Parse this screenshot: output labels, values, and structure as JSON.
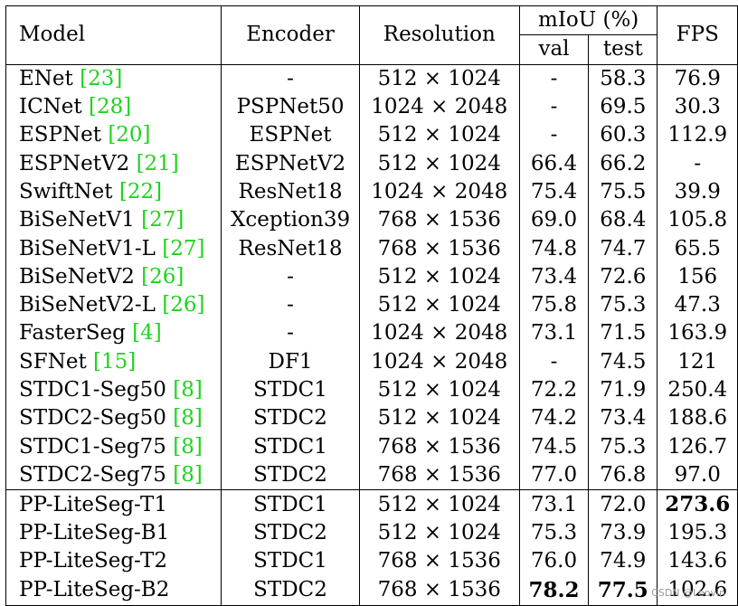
{
  "header": {
    "model": "Model",
    "encoder": "Encoder",
    "resolution": "Resolution",
    "miou": "mIoU (%)",
    "val": "val",
    "test": "test",
    "fps": "FPS"
  },
  "rows_a": [
    {
      "model": "ENet ",
      "ref": "[23]",
      "encoder": "-",
      "res": "512 × 1024",
      "val": "-",
      "test": "58.3",
      "fps": "76.9"
    },
    {
      "model": "ICNet ",
      "ref": "[28]",
      "encoder": "PSPNet50",
      "res": "1024 × 2048",
      "val": "-",
      "test": "69.5",
      "fps": "30.3"
    },
    {
      "model": "ESPNet ",
      "ref": "[20]",
      "encoder": "ESPNet",
      "res": "512 × 1024",
      "val": "-",
      "test": "60.3",
      "fps": "112.9"
    },
    {
      "model": "ESPNetV2 ",
      "ref": "[21]",
      "encoder": "ESPNetV2",
      "res": "512 × 1024",
      "val": "66.4",
      "test": "66.2",
      "fps": "-"
    },
    {
      "model": "SwiftNet ",
      "ref": "[22]",
      "encoder": "ResNet18",
      "res": "1024 × 2048",
      "val": "75.4",
      "test": "75.5",
      "fps": "39.9"
    },
    {
      "model": "BiSeNetV1 ",
      "ref": "[27]",
      "encoder": "Xception39",
      "res": "768 × 1536",
      "val": "69.0",
      "test": "68.4",
      "fps": "105.8"
    },
    {
      "model": "BiSeNetV1-L ",
      "ref": "[27]",
      "encoder": "ResNet18",
      "res": "768 × 1536",
      "val": "74.8",
      "test": "74.7",
      "fps": "65.5"
    },
    {
      "model": "BiSeNetV2 ",
      "ref": "[26]",
      "encoder": "-",
      "res": "512 × 1024",
      "val": "73.4",
      "test": "72.6",
      "fps": "156"
    },
    {
      "model": "BiSeNetV2-L ",
      "ref": "[26]",
      "encoder": "-",
      "res": "512 × 1024",
      "val": "75.8",
      "test": "75.3",
      "fps": "47.3"
    },
    {
      "model": "FasterSeg ",
      "ref": "[4]",
      "encoder": "-",
      "res": "1024 × 2048",
      "val": "73.1",
      "test": "71.5",
      "fps": "163.9"
    },
    {
      "model": "SFNet ",
      "ref": "[15]",
      "encoder": "DF1",
      "res": "1024 × 2048",
      "val": "-",
      "test": "74.5",
      "fps": "121"
    },
    {
      "model": "STDC1-Seg50 ",
      "ref": "[8]",
      "encoder": "STDC1",
      "res": "512 × 1024",
      "val": "72.2",
      "test": "71.9",
      "fps": "250.4"
    },
    {
      "model": "STDC2-Seg50 ",
      "ref": "[8]",
      "encoder": "STDC2",
      "res": "512 × 1024",
      "val": "74.2",
      "test": "73.4",
      "fps": "188.6"
    },
    {
      "model": "STDC1-Seg75 ",
      "ref": "[8]",
      "encoder": "STDC1",
      "res": "768 × 1536",
      "val": "74.5",
      "test": "75.3",
      "fps": "126.7"
    },
    {
      "model": "STDC2-Seg75 ",
      "ref": "[8]",
      "encoder": "STDC2",
      "res": "768 × 1536",
      "val": "77.0",
      "test": "76.8",
      "fps": "97.0"
    }
  ],
  "rows_b": [
    {
      "model": "PP-LiteSeg-T1",
      "ref": "",
      "encoder": "STDC1",
      "res": "512 × 1024",
      "val": "73.1",
      "test": "72.0",
      "fps": "273.6",
      "bold": [
        "fps"
      ]
    },
    {
      "model": "PP-LiteSeg-B1",
      "ref": "",
      "encoder": "STDC2",
      "res": "512 × 1024",
      "val": "75.3",
      "test": "73.9",
      "fps": "195.3",
      "bold": []
    },
    {
      "model": "PP-LiteSeg-T2",
      "ref": "",
      "encoder": "STDC1",
      "res": "768 × 1536",
      "val": "76.0",
      "test": "74.9",
      "fps": "143.6",
      "bold": []
    },
    {
      "model": "PP-LiteSeg-B2",
      "ref": "",
      "encoder": "STDC2",
      "res": "768 × 1536",
      "val": "78.2",
      "test": "77.5",
      "fps": "102.6",
      "bold": [
        "val",
        "test"
      ]
    }
  ],
  "watermark": "CSDN @Leovin",
  "colors": {
    "ref": "#1fd31f",
    "watermark": "#9a9a9a"
  }
}
